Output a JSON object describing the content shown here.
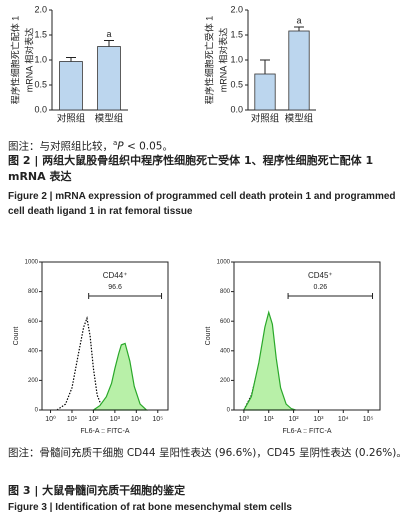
{
  "chart_data": [
    {
      "type": "bar",
      "y_label": [
        "程序性细胞死亡配体 1",
        "mRNA 相对表达"
      ],
      "categories": [
        "对照组",
        "模型组"
      ],
      "values": [
        0.97,
        1.27
      ],
      "errors": [
        0.08,
        0.12
      ],
      "color": "#bcd6ee",
      "ylim": [
        0,
        2
      ],
      "yticks": [
        {
          "value": 0,
          "label": "0.0"
        },
        0.5,
        {
          "value": 1,
          "label": "1.0"
        },
        1.5,
        {
          "value": 2,
          "label": "2.0"
        }
      ],
      "annotations": [
        {
          "category": "模型组",
          "text": "a"
        }
      ]
    },
    {
      "type": "bar",
      "y_label": [
        "程序性细胞死亡受体 1",
        "mRNA 相对表达"
      ],
      "categories": [
        "对照组",
        "模型组"
      ],
      "values": [
        0.72,
        1.58
      ],
      "errors": [
        0.28,
        0.08
      ],
      "color": "#bcd6ee",
      "ylim": [
        0,
        2
      ],
      "yticks": [
        {
          "value": 0,
          "label": "0.0"
        },
        0.5,
        {
          "value": 1,
          "label": "1.0"
        },
        1.5,
        {
          "value": 2,
          "label": "2.0"
        }
      ],
      "annotations": [
        {
          "category": "模型组",
          "text": "a"
        }
      ]
    },
    {
      "type": "flow",
      "x_label": "FL6-A :: FITC-A",
      "y_label": "Count",
      "xscale": "log",
      "xlim": [
        0.4,
        300000
      ],
      "xticks": [
        {
          "value": 1,
          "label": "10⁰"
        },
        {
          "value": 10,
          "label": "10¹"
        },
        {
          "value": 100,
          "label": "10²"
        },
        {
          "value": 1000,
          "label": "10³"
        },
        {
          "value": 10000,
          "label": "10⁴"
        },
        {
          "value": 100000,
          "label": "10⁵"
        }
      ],
      "ylim": [
        0,
        1000
      ],
      "yticks": [
        0,
        200,
        400,
        600,
        800,
        1000
      ],
      "series": [
        {
          "color": "#000000",
          "style": "dotted",
          "x": [
            2,
            5,
            10,
            20,
            35,
            50,
            70,
            100,
            150,
            250,
            400
          ],
          "values": [
            0,
            40,
            150,
            380,
            560,
            620,
            500,
            280,
            100,
            20,
            0
          ]
        },
        {
          "color": "#2aa82a",
          "fill": "#b8f0a8",
          "x": [
            100,
            200,
            400,
            700,
            1000,
            1500,
            2000,
            3000,
            5000,
            8000,
            15000,
            30000
          ],
          "values": [
            0,
            30,
            90,
            180,
            280,
            380,
            440,
            450,
            330,
            160,
            40,
            0
          ]
        }
      ],
      "gate": {
        "label": "CD44⁺",
        "value": 96.6,
        "x": [
          60,
          150000
        ]
      }
    },
    {
      "type": "flow",
      "x_label": "FL6-A :: FITC-A",
      "y_label": "Count",
      "xscale": "log",
      "xlim": [
        0.4,
        300000
      ],
      "xticks": [
        {
          "value": 1,
          "label": "10⁰"
        },
        {
          "value": 10,
          "label": "10¹"
        },
        {
          "value": 100,
          "label": "10²"
        },
        {
          "value": 1000,
          "label": "10³"
        },
        {
          "value": 10000,
          "label": "10⁴"
        },
        {
          "value": 100000,
          "label": "10⁵"
        }
      ],
      "ylim": [
        0,
        1000
      ],
      "yticks": [
        0,
        200,
        400,
        600,
        800,
        1000
      ],
      "series": [
        {
          "color": "#000000",
          "style": "dotted",
          "x": [
            1,
            2,
            4,
            7,
            10,
            14,
            20,
            30,
            50,
            80
          ],
          "values": [
            0,
            100,
            300,
            520,
            640,
            560,
            330,
            120,
            20,
            0
          ]
        },
        {
          "color": "#2aa82a",
          "fill": "#b8f0a8",
          "x": [
            1,
            2,
            4,
            7,
            10,
            14,
            20,
            30,
            50,
            80,
            120
          ],
          "values": [
            0,
            90,
            320,
            560,
            660,
            580,
            350,
            150,
            40,
            10,
            0
          ]
        }
      ],
      "gate": {
        "label": "CD45⁺",
        "value": 0.26,
        "x": [
          60,
          150000
        ]
      }
    }
  ],
  "figure2": {
    "note": {
      "prefix": "图注：与对照组比较，",
      "sup": "a",
      "italic": "P",
      "rest": " < 0.05。"
    },
    "title_cn": "图 2 | 两组大鼠股骨组织中程序性细胞死亡受体 1、程序性细胞死亡配体 1 mRNA 表达",
    "title_en": "Figure 2 | mRNA expression of programmed cell death protein 1 and programmed cell death ligand 1 in rat femoral tissue"
  },
  "figure3": {
    "note": "图注：骨髓间充质干细胞 CD44 呈阳性表达 (96.6%)，CD45 呈阴性表达 (0.26%)。",
    "title_cn": "图 3 | 大鼠骨髓间充质干细胞的鉴定",
    "title_en": "Figure 3 | Identification of rat bone mesenchymal stem cells"
  }
}
